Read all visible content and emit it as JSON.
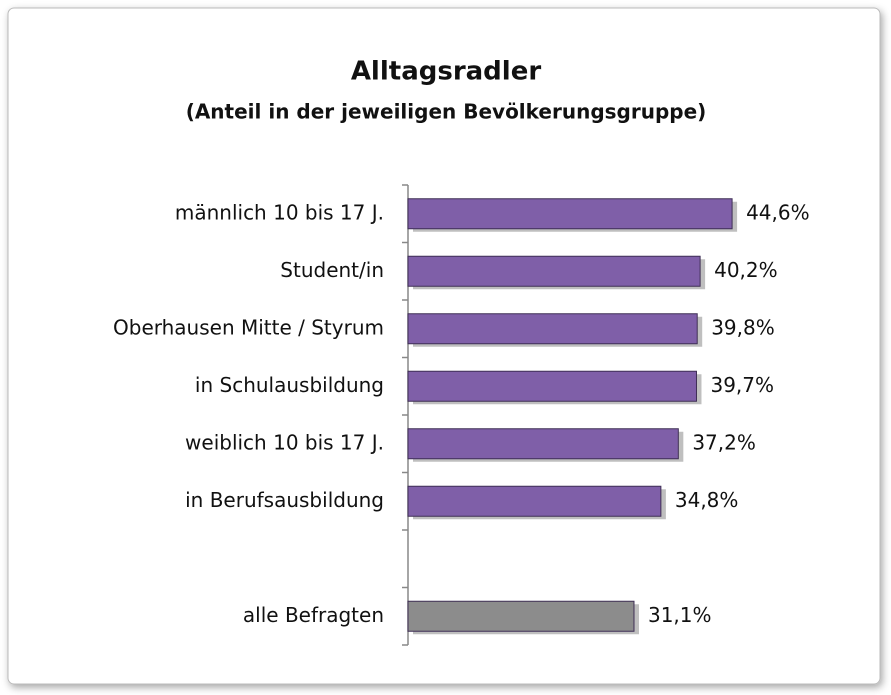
{
  "chart_data": {
    "type": "hbar",
    "title": "Alltagsradler",
    "subtitle": "(Anteil in der jeweiligen Bevölkerungsgruppe)",
    "categories": [
      "männlich 10 bis 17 J.",
      "Student/in",
      "Oberhausen Mitte / Styrum",
      "in Schulausbildung",
      "weiblich 10 bis 17 J.",
      "in Berufsausbildung",
      null,
      "alle Befragten"
    ],
    "values": [
      44.6,
      40.2,
      39.8,
      39.7,
      37.2,
      34.8,
      null,
      31.1
    ],
    "value_labels": [
      "44,6%",
      "40,2%",
      "39,8%",
      "39,7%",
      "37,2%",
      "34,8%",
      null,
      "31,1%"
    ],
    "colors": [
      "#7f5fa8",
      "#7f5fa8",
      "#7f5fa8",
      "#7f5fa8",
      "#7f5fa8",
      "#7f5fa8",
      null,
      "#8c8c8c"
    ],
    "xlim": [
      0,
      60
    ]
  }
}
